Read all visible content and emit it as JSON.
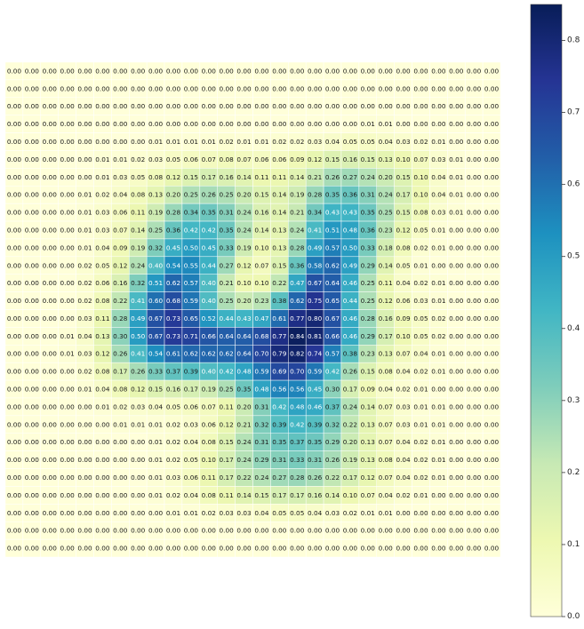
{
  "chart_data": {
    "type": "heatmap",
    "title": "",
    "xlabel": "",
    "ylabel": "",
    "colormap": "YlGnBu",
    "value_range": [
      0.0,
      0.85
    ],
    "grid_lines": true,
    "colorbar": {
      "position": "right",
      "ticks": [
        "0.0",
        "0.1",
        "0.2",
        "0.3",
        "0.4",
        "0.5",
        "0.6",
        "0.7",
        "0.8"
      ]
    },
    "rows": [
      [
        "0.00",
        "0.00",
        "0.00",
        "0.00",
        "0.00",
        "0.00",
        "0.00",
        "0.00",
        "0.00",
        "0.00",
        "0.00",
        "0.00",
        "0.00",
        "0.00",
        "0.00",
        "0.00",
        "0.00",
        "0.00",
        "0.00",
        "0.00",
        "0.00",
        "0.00",
        "0.00",
        "0.00",
        "0.00",
        "0.00",
        "0.00",
        "0.00"
      ],
      [
        "0.00",
        "0.00",
        "0.00",
        "0.00",
        "0.00",
        "0.00",
        "0.00",
        "0.00",
        "0.00",
        "0.00",
        "0.00",
        "0.00",
        "0.00",
        "0.00",
        "0.00",
        "0.00",
        "0.00",
        "0.00",
        "0.00",
        "0.00",
        "0.00",
        "0.00",
        "0.00",
        "0.00",
        "0.00",
        "0.00",
        "0.00",
        "0.00"
      ],
      [
        "0.00",
        "0.00",
        "0.00",
        "0.00",
        "0.00",
        "0.00",
        "0.00",
        "0.00",
        "0.00",
        "0.00",
        "0.00",
        "0.00",
        "0.00",
        "0.00",
        "0.00",
        "0.00",
        "0.00",
        "0.00",
        "0.00",
        "0.00",
        "0.00",
        "0.00",
        "0.00",
        "0.00",
        "0.00",
        "0.00",
        "0.00",
        "0.00"
      ],
      [
        "0.00",
        "0.00",
        "0.00",
        "0.00",
        "0.00",
        "0.00",
        "0.00",
        "0.00",
        "0.00",
        "0.00",
        "0.00",
        "0.00",
        "0.00",
        "0.00",
        "0.00",
        "0.00",
        "0.00",
        "0.00",
        "0.00",
        "0.00",
        "0.01",
        "0.01",
        "0.00",
        "0.00",
        "0.00",
        "0.00",
        "0.00",
        "0.00"
      ],
      [
        "0.00",
        "0.00",
        "0.00",
        "0.00",
        "0.00",
        "0.00",
        "0.00",
        "0.00",
        "0.01",
        "0.01",
        "0.01",
        "0.01",
        "0.02",
        "0.01",
        "0.01",
        "0.02",
        "0.02",
        "0.03",
        "0.04",
        "0.05",
        "0.05",
        "0.04",
        "0.03",
        "0.02",
        "0.01",
        "0.00",
        "0.00",
        "0.00"
      ],
      [
        "0.00",
        "0.00",
        "0.00",
        "0.00",
        "0.00",
        "0.01",
        "0.01",
        "0.02",
        "0.03",
        "0.05",
        "0.06",
        "0.07",
        "0.08",
        "0.07",
        "0.06",
        "0.06",
        "0.09",
        "0.12",
        "0.15",
        "0.16",
        "0.15",
        "0.13",
        "0.10",
        "0.07",
        "0.03",
        "0.01",
        "0.00",
        "0.00"
      ],
      [
        "0.00",
        "0.00",
        "0.00",
        "0.00",
        "0.00",
        "0.01",
        "0.03",
        "0.05",
        "0.08",
        "0.12",
        "0.15",
        "0.17",
        "0.16",
        "0.14",
        "0.11",
        "0.11",
        "0.14",
        "0.21",
        "0.26",
        "0.27",
        "0.24",
        "0.20",
        "0.15",
        "0.10",
        "0.04",
        "0.01",
        "0.00",
        "0.00"
      ],
      [
        "0.00",
        "0.00",
        "0.00",
        "0.00",
        "0.01",
        "0.02",
        "0.04",
        "0.08",
        "0.13",
        "0.20",
        "0.25",
        "0.26",
        "0.25",
        "0.20",
        "0.15",
        "0.14",
        "0.19",
        "0.28",
        "0.35",
        "0.36",
        "0.31",
        "0.24",
        "0.17",
        "0.10",
        "0.04",
        "0.01",
        "0.00",
        "0.00"
      ],
      [
        "0.00",
        "0.00",
        "0.00",
        "0.00",
        "0.01",
        "0.03",
        "0.06",
        "0.11",
        "0.19",
        "0.28",
        "0.34",
        "0.35",
        "0.31",
        "0.24",
        "0.16",
        "0.14",
        "0.21",
        "0.34",
        "0.43",
        "0.43",
        "0.35",
        "0.25",
        "0.15",
        "0.08",
        "0.03",
        "0.01",
        "0.00",
        "0.00"
      ],
      [
        "0.00",
        "0.00",
        "0.00",
        "0.00",
        "0.01",
        "0.03",
        "0.07",
        "0.14",
        "0.25",
        "0.36",
        "0.42",
        "0.42",
        "0.35",
        "0.24",
        "0.14",
        "0.13",
        "0.24",
        "0.41",
        "0.51",
        "0.48",
        "0.36",
        "0.23",
        "0.12",
        "0.05",
        "0.01",
        "0.00",
        "0.00",
        "0.00"
      ],
      [
        "0.00",
        "0.00",
        "0.00",
        "0.00",
        "0.01",
        "0.04",
        "0.09",
        "0.19",
        "0.32",
        "0.45",
        "0.50",
        "0.45",
        "0.33",
        "0.19",
        "0.10",
        "0.13",
        "0.28",
        "0.49",
        "0.57",
        "0.50",
        "0.33",
        "0.18",
        "0.08",
        "0.02",
        "0.01",
        "0.00",
        "0.00",
        "0.00"
      ],
      [
        "0.00",
        "0.00",
        "0.00",
        "0.00",
        "0.02",
        "0.05",
        "0.12",
        "0.24",
        "0.40",
        "0.54",
        "0.55",
        "0.44",
        "0.27",
        "0.12",
        "0.07",
        "0.15",
        "0.36",
        "0.58",
        "0.62",
        "0.49",
        "0.29",
        "0.14",
        "0.05",
        "0.01",
        "0.00",
        "0.00",
        "0.00",
        "0.00"
      ],
      [
        "0.00",
        "0.00",
        "0.00",
        "0.00",
        "0.02",
        "0.06",
        "0.16",
        "0.32",
        "0.51",
        "0.62",
        "0.57",
        "0.40",
        "0.21",
        "0.10",
        "0.10",
        "0.22",
        "0.47",
        "0.67",
        "0.64",
        "0.46",
        "0.25",
        "0.11",
        "0.04",
        "0.02",
        "0.01",
        "0.00",
        "0.00",
        "0.00"
      ],
      [
        "0.00",
        "0.00",
        "0.00",
        "0.00",
        "0.02",
        "0.08",
        "0.22",
        "0.41",
        "0.60",
        "0.68",
        "0.59",
        "0.40",
        "0.25",
        "0.20",
        "0.23",
        "0.38",
        "0.62",
        "0.75",
        "0.65",
        "0.44",
        "0.25",
        "0.12",
        "0.06",
        "0.03",
        "0.01",
        "0.00",
        "0.00",
        "0.00"
      ],
      [
        "0.00",
        "0.00",
        "0.00",
        "0.00",
        "0.03",
        "0.11",
        "0.28",
        "0.49",
        "0.67",
        "0.73",
        "0.65",
        "0.52",
        "0.44",
        "0.43",
        "0.47",
        "0.61",
        "0.77",
        "0.80",
        "0.67",
        "0.46",
        "0.28",
        "0.16",
        "0.09",
        "0.05",
        "0.02",
        "0.00",
        "0.00",
        "0.00"
      ],
      [
        "0.00",
        "0.00",
        "0.00",
        "0.01",
        "0.04",
        "0.13",
        "0.30",
        "0.50",
        "0.67",
        "0.73",
        "0.71",
        "0.66",
        "0.64",
        "0.64",
        "0.68",
        "0.77",
        "0.84",
        "0.81",
        "0.66",
        "0.46",
        "0.29",
        "0.17",
        "0.10",
        "0.05",
        "0.02",
        "0.00",
        "0.00",
        "0.00"
      ],
      [
        "0.00",
        "0.00",
        "0.00",
        "0.01",
        "0.03",
        "0.12",
        "0.26",
        "0.41",
        "0.54",
        "0.61",
        "0.62",
        "0.62",
        "0.62",
        "0.64",
        "0.70",
        "0.79",
        "0.82",
        "0.74",
        "0.57",
        "0.38",
        "0.23",
        "0.13",
        "0.07",
        "0.04",
        "0.01",
        "0.00",
        "0.00",
        "0.00"
      ],
      [
        "0.00",
        "0.00",
        "0.00",
        "0.00",
        "0.02",
        "0.08",
        "0.17",
        "0.26",
        "0.33",
        "0.37",
        "0.39",
        "0.40",
        "0.42",
        "0.48",
        "0.59",
        "0.69",
        "0.70",
        "0.59",
        "0.42",
        "0.26",
        "0.15",
        "0.08",
        "0.04",
        "0.02",
        "0.01",
        "0.00",
        "0.00",
        "0.00"
      ],
      [
        "0.00",
        "0.00",
        "0.00",
        "0.00",
        "0.01",
        "0.04",
        "0.08",
        "0.12",
        "0.15",
        "0.16",
        "0.17",
        "0.19",
        "0.25",
        "0.35",
        "0.48",
        "0.56",
        "0.56",
        "0.45",
        "0.30",
        "0.17",
        "0.09",
        "0.04",
        "0.02",
        "0.01",
        "0.00",
        "0.00",
        "0.00",
        "0.00"
      ],
      [
        "0.00",
        "0.00",
        "0.00",
        "0.00",
        "0.00",
        "0.01",
        "0.02",
        "0.03",
        "0.04",
        "0.05",
        "0.06",
        "0.07",
        "0.11",
        "0.20",
        "0.31",
        "0.42",
        "0.48",
        "0.46",
        "0.37",
        "0.24",
        "0.14",
        "0.07",
        "0.03",
        "0.01",
        "0.01",
        "0.00",
        "0.00",
        "0.00"
      ],
      [
        "0.00",
        "0.00",
        "0.00",
        "0.00",
        "0.00",
        "0.00",
        "0.01",
        "0.01",
        "0.01",
        "0.02",
        "0.03",
        "0.06",
        "0.12",
        "0.21",
        "0.32",
        "0.39",
        "0.42",
        "0.39",
        "0.32",
        "0.22",
        "0.13",
        "0.07",
        "0.03",
        "0.01",
        "0.01",
        "0.00",
        "0.00",
        "0.00"
      ],
      [
        "0.00",
        "0.00",
        "0.00",
        "0.00",
        "0.00",
        "0.00",
        "0.00",
        "0.00",
        "0.01",
        "0.02",
        "0.04",
        "0.08",
        "0.15",
        "0.24",
        "0.31",
        "0.35",
        "0.37",
        "0.35",
        "0.29",
        "0.20",
        "0.13",
        "0.07",
        "0.04",
        "0.02",
        "0.01",
        "0.00",
        "0.00",
        "0.00"
      ],
      [
        "0.00",
        "0.00",
        "0.00",
        "0.00",
        "0.00",
        "0.00",
        "0.00",
        "0.00",
        "0.01",
        "0.02",
        "0.05",
        "0.10",
        "0.17",
        "0.24",
        "0.29",
        "0.31",
        "0.33",
        "0.31",
        "0.26",
        "0.19",
        "0.13",
        "0.08",
        "0.04",
        "0.02",
        "0.01",
        "0.00",
        "0.00",
        "0.00"
      ],
      [
        "0.00",
        "0.00",
        "0.00",
        "0.00",
        "0.00",
        "0.00",
        "0.00",
        "0.00",
        "0.01",
        "0.03",
        "0.06",
        "0.11",
        "0.17",
        "0.22",
        "0.24",
        "0.27",
        "0.28",
        "0.26",
        "0.22",
        "0.17",
        "0.12",
        "0.07",
        "0.04",
        "0.02",
        "0.01",
        "0.00",
        "0.00",
        "0.00"
      ],
      [
        "0.00",
        "0.00",
        "0.00",
        "0.00",
        "0.00",
        "0.00",
        "0.00",
        "0.00",
        "0.01",
        "0.02",
        "0.04",
        "0.08",
        "0.11",
        "0.14",
        "0.15",
        "0.17",
        "0.17",
        "0.16",
        "0.14",
        "0.10",
        "0.07",
        "0.04",
        "0.02",
        "0.01",
        "0.00",
        "0.00",
        "0.00",
        "0.00"
      ],
      [
        "0.00",
        "0.00",
        "0.00",
        "0.00",
        "0.00",
        "0.00",
        "0.00",
        "0.00",
        "0.00",
        "0.01",
        "0.01",
        "0.02",
        "0.03",
        "0.03",
        "0.04",
        "0.05",
        "0.05",
        "0.04",
        "0.03",
        "0.02",
        "0.01",
        "0.01",
        "0.00",
        "0.00",
        "0.00",
        "0.00",
        "0.00",
        "0.00"
      ],
      [
        "0.00",
        "0.00",
        "0.00",
        "0.00",
        "0.00",
        "0.00",
        "0.00",
        "0.00",
        "0.00",
        "0.00",
        "0.00",
        "0.00",
        "0.00",
        "0.00",
        "0.00",
        "0.00",
        "0.00",
        "0.00",
        "0.00",
        "0.00",
        "0.00",
        "0.00",
        "0.00",
        "0.00",
        "0.00",
        "0.00",
        "0.00",
        "0.00"
      ],
      [
        "0.00",
        "0.00",
        "0.00",
        "0.00",
        "0.00",
        "0.00",
        "0.00",
        "0.00",
        "0.00",
        "0.00",
        "0.00",
        "0.00",
        "0.00",
        "0.00",
        "0.00",
        "0.00",
        "0.00",
        "0.00",
        "0.00",
        "0.00",
        "0.00",
        "0.00",
        "0.00",
        "0.00",
        "0.00",
        "0.00",
        "0.00",
        "0.00"
      ]
    ]
  }
}
